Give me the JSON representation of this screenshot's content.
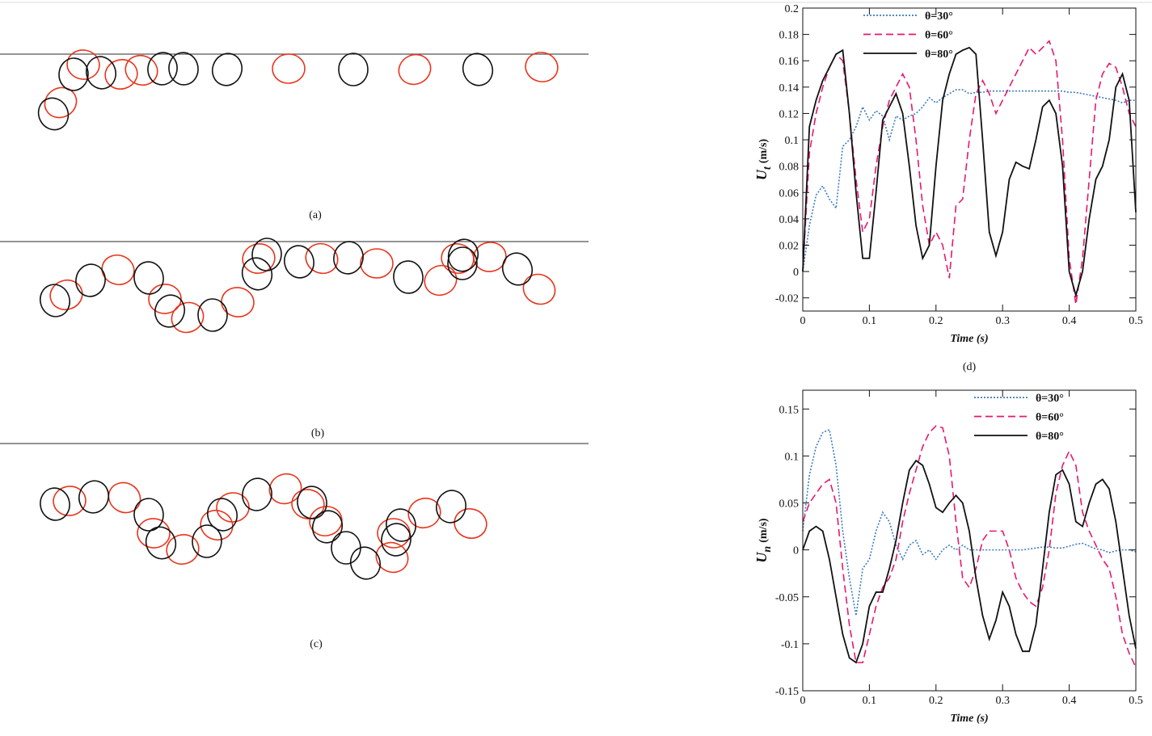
{
  "panels": {
    "labels": [
      "(a)",
      "(b)",
      "(c)"
    ]
  },
  "chart_data": [
    {
      "type": "line",
      "caption": "(d)",
      "xlabel": "Time (s)",
      "ylabel": {
        "symbol": "U",
        "subscript": "t",
        "unit": "(m/s)"
      },
      "xlim": [
        0,
        0.5
      ],
      "xticks": [
        0,
        0.1,
        0.2,
        0.3,
        0.4,
        0.5
      ],
      "ylim": [
        -0.03,
        0.2
      ],
      "yticks": [
        -0.02,
        0,
        0.02,
        0.04,
        0.06,
        0.08,
        0.1,
        0.12,
        0.14,
        0.16,
        0.18,
        0.2
      ],
      "legend": "upper center",
      "x": [
        0,
        0.01,
        0.02,
        0.03,
        0.04,
        0.05,
        0.06,
        0.07,
        0.08,
        0.09,
        0.1,
        0.11,
        0.12,
        0.13,
        0.14,
        0.15,
        0.16,
        0.17,
        0.18,
        0.19,
        0.2,
        0.21,
        0.22,
        0.23,
        0.24,
        0.25,
        0.26,
        0.27,
        0.28,
        0.29,
        0.3,
        0.31,
        0.32,
        0.33,
        0.34,
        0.35,
        0.36,
        0.37,
        0.38,
        0.39,
        0.4,
        0.41,
        0.42,
        0.43,
        0.44,
        0.45,
        0.46,
        0.47,
        0.48,
        0.49,
        0.5
      ],
      "series": [
        {
          "name": "θ=30°",
          "color": "#3b7bbf",
          "dash": "dotted",
          "values": [
            0,
            0.035,
            0.058,
            0.065,
            0.055,
            0.048,
            0.095,
            0.1,
            0.11,
            0.125,
            0.115,
            0.122,
            0.118,
            0.1,
            0.118,
            0.115,
            0.118,
            0.12,
            0.125,
            0.132,
            0.128,
            0.132,
            0.135,
            0.138,
            0.138,
            0.135,
            0.136,
            0.136,
            0.137,
            0.137,
            0.137,
            0.137,
            0.137,
            0.137,
            0.137,
            0.137,
            0.137,
            0.137,
            0.137,
            0.137,
            0.136,
            0.136,
            0.135,
            0.134,
            0.133,
            0.132,
            0.131,
            0.13,
            0.128,
            0.13,
            0.13
          ]
        },
        {
          "name": "θ=60°",
          "color": "#e6186f",
          "dash": "dashed",
          "values": [
            0,
            0.09,
            0.12,
            0.14,
            0.155,
            0.165,
            0.16,
            0.12,
            0.07,
            0.03,
            0.04,
            0.08,
            0.11,
            0.13,
            0.14,
            0.15,
            0.14,
            0.1,
            0.05,
            0.02,
            0.03,
            0.02,
            -0.005,
            0.05,
            0.055,
            0.1,
            0.135,
            0.145,
            0.135,
            0.12,
            0.13,
            0.14,
            0.15,
            0.16,
            0.17,
            0.165,
            0.17,
            0.175,
            0.16,
            0.1,
            0.01,
            -0.025,
            0.01,
            0.07,
            0.13,
            0.15,
            0.158,
            0.155,
            0.14,
            0.12,
            0.11
          ]
        },
        {
          "name": "θ=80°",
          "color": "#111111",
          "dash": "solid",
          "values": [
            0,
            0.11,
            0.13,
            0.145,
            0.155,
            0.165,
            0.168,
            0.12,
            0.06,
            0.01,
            0.01,
            0.06,
            0.115,
            0.125,
            0.135,
            0.12,
            0.08,
            0.035,
            0.01,
            0.02,
            0.08,
            0.13,
            0.15,
            0.165,
            0.168,
            0.17,
            0.165,
            0.1,
            0.03,
            0.012,
            0.03,
            0.07,
            0.083,
            0.08,
            0.078,
            0.1,
            0.125,
            0.13,
            0.12,
            0.08,
            0,
            -0.018,
            0,
            0.04,
            0.07,
            0.08,
            0.1,
            0.14,
            0.15,
            0.13,
            0.045
          ]
        }
      ]
    },
    {
      "type": "line",
      "xlabel": "Time (s)",
      "ylabel": {
        "symbol": "U",
        "subscript": "n",
        "unit": "(m/s)"
      },
      "xlim": [
        0,
        0.5
      ],
      "xticks": [
        0,
        0.1,
        0.2,
        0.3,
        0.4,
        0.5
      ],
      "ylim": [
        -0.15,
        0.17
      ],
      "yticks": [
        -0.15,
        -0.1,
        -0.05,
        0,
        0.05,
        0.1,
        0.15
      ],
      "legend": "upper right",
      "x": [
        0,
        0.01,
        0.02,
        0.03,
        0.04,
        0.05,
        0.06,
        0.07,
        0.08,
        0.09,
        0.1,
        0.11,
        0.12,
        0.13,
        0.14,
        0.15,
        0.16,
        0.17,
        0.18,
        0.19,
        0.2,
        0.21,
        0.22,
        0.23,
        0.24,
        0.25,
        0.26,
        0.27,
        0.28,
        0.29,
        0.3,
        0.31,
        0.32,
        0.33,
        0.34,
        0.35,
        0.36,
        0.37,
        0.38,
        0.39,
        0.4,
        0.41,
        0.42,
        0.43,
        0.44,
        0.45,
        0.46,
        0.47,
        0.48,
        0.49,
        0.5
      ],
      "series": [
        {
          "name": "θ=30°",
          "color": "#3b7bbf",
          "dash": "dotted",
          "values": [
            0.02,
            0.08,
            0.11,
            0.125,
            0.128,
            0.09,
            0.02,
            -0.03,
            -0.07,
            -0.02,
            -0.01,
            0.02,
            0.04,
            0.03,
            0.005,
            -0.01,
            0.005,
            0.01,
            -0.005,
            0,
            -0.01,
            0,
            0.005,
            0,
            0.005,
            0,
            0,
            0,
            0,
            0,
            0,
            0,
            0,
            0,
            0.001,
            0.002,
            0.003,
            0.003,
            0.002,
            0.002,
            0.004,
            0.006,
            0.007,
            0.004,
            0.001,
            0,
            -0.003,
            -0.001,
            0,
            0,
            -0.002
          ]
        },
        {
          "name": "θ=60°",
          "color": "#e6186f",
          "dash": "dashed",
          "values": [
            0.03,
            0.05,
            0.06,
            0.07,
            0.075,
            0.05,
            -0.02,
            -0.08,
            -0.12,
            -0.12,
            -0.09,
            -0.06,
            -0.04,
            -0.03,
            -0.01,
            0.03,
            0.06,
            0.085,
            0.11,
            0.125,
            0.132,
            0.13,
            0.1,
            0.03,
            -0.03,
            -0.04,
            -0.02,
            0.01,
            0.02,
            0.02,
            0.02,
            0,
            -0.03,
            -0.045,
            -0.055,
            -0.06,
            -0.04,
            0,
            0.06,
            0.09,
            0.105,
            0.09,
            0.04,
            0.02,
            0.005,
            -0.01,
            -0.02,
            -0.05,
            -0.09,
            -0.11,
            -0.125
          ]
        },
        {
          "name": "θ=80°",
          "color": "#111111",
          "dash": "solid",
          "values": [
            0,
            0.02,
            0.025,
            0.02,
            -0.01,
            -0.05,
            -0.09,
            -0.115,
            -0.12,
            -0.1,
            -0.06,
            -0.045,
            -0.045,
            -0.02,
            0.01,
            0.05,
            0.085,
            0.095,
            0.09,
            0.07,
            0.045,
            0.04,
            0.05,
            0.058,
            0.05,
            0.02,
            -0.03,
            -0.07,
            -0.095,
            -0.075,
            -0.045,
            -0.06,
            -0.09,
            -0.108,
            -0.108,
            -0.08,
            -0.02,
            0.04,
            0.08,
            0.085,
            0.07,
            0.03,
            0.025,
            0.05,
            0.07,
            0.075,
            0.065,
            0.03,
            -0.02,
            -0.07,
            -0.105
          ]
        }
      ]
    }
  ]
}
